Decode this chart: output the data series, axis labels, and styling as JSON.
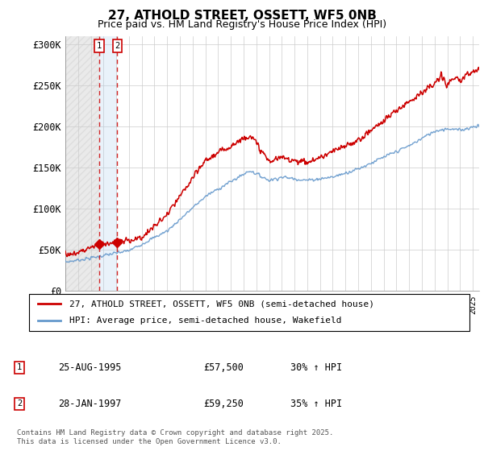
{
  "title_line1": "27, ATHOLD STREET, OSSETT, WF5 0NB",
  "title_line2": "Price paid vs. HM Land Registry's House Price Index (HPI)",
  "ylim": [
    0,
    310000
  ],
  "yticks": [
    0,
    50000,
    100000,
    150000,
    200000,
    250000,
    300000
  ],
  "ytick_labels": [
    "£0",
    "£50K",
    "£100K",
    "£150K",
    "£200K",
    "£250K",
    "£300K"
  ],
  "legend_line1": "27, ATHOLD STREET, OSSETT, WF5 0NB (semi-detached house)",
  "legend_line2": "HPI: Average price, semi-detached house, Wakefield",
  "red_line_color": "#cc0000",
  "blue_line_color": "#6699cc",
  "transaction1_date": "25-AUG-1995",
  "transaction1_price": "£57,500",
  "transaction1_hpi": "30% ↑ HPI",
  "transaction1_year": 1995.65,
  "transaction1_price_val": 57500,
  "transaction2_date": "28-JAN-1997",
  "transaction2_price": "£59,250",
  "transaction2_hpi": "35% ↑ HPI",
  "transaction2_year": 1997.08,
  "transaction2_price_val": 59250,
  "footer": "Contains HM Land Registry data © Crown copyright and database right 2025.\nThis data is licensed under the Open Government Licence v3.0.",
  "background_color": "#ffffff",
  "grid_color": "#cccccc",
  "hatch_fill_color": "#dddddd",
  "highlight_color": "#ddeeff"
}
